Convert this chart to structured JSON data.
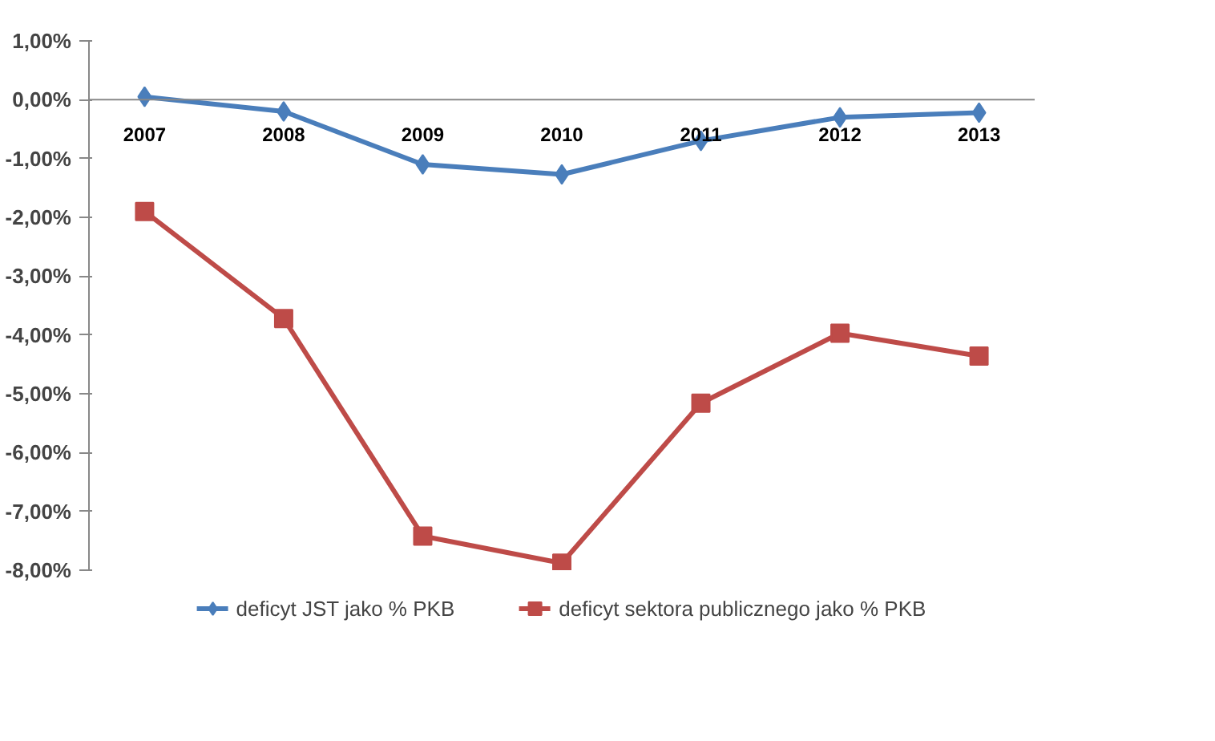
{
  "chart_data": {
    "type": "line",
    "categories": [
      "2007",
      "2008",
      "2009",
      "2010",
      "2011",
      "2012",
      "2013"
    ],
    "series": [
      {
        "name": "deficyt JST jako % PKB",
        "color": "#4a7ebb",
        "marker": "diamond",
        "values": [
          0.05,
          -0.2,
          -1.1,
          -1.27,
          -0.7,
          -0.3,
          -0.22
        ]
      },
      {
        "name": "deficyt sektora publicznego jako % PKB",
        "color": "#be4b48",
        "marker": "square",
        "values": [
          -1.9,
          -3.72,
          -7.42,
          -7.88,
          -5.16,
          -3.97,
          -4.36
        ]
      }
    ],
    "ylim": [
      -8,
      1
    ],
    "yticks": [
      {
        "value": 1,
        "label": "1,00%"
      },
      {
        "value": 0,
        "label": "0,00%"
      },
      {
        "value": -1,
        "label": "-1,00%"
      },
      {
        "value": -2,
        "label": "-2,00%"
      },
      {
        "value": -3,
        "label": "-3,00%"
      },
      {
        "value": -4,
        "label": "-4,00%"
      },
      {
        "value": -5,
        "label": "-5,00%"
      },
      {
        "value": -6,
        "label": "-6,00%"
      },
      {
        "value": -7,
        "label": "-7,00%"
      },
      {
        "value": -8,
        "label": "-8,00%"
      }
    ],
    "grid": false,
    "legend": "bottom"
  }
}
